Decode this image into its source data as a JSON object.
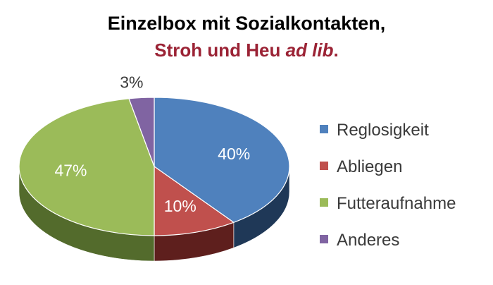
{
  "chart_data": {
    "type": "pie",
    "title_line1": "Einzelbox mit Sozialkontakten,",
    "title_line2_plain": "Stroh und Heu ",
    "title_line2_italic": "ad lib",
    "title_line2_end": ".",
    "categories": [
      "Reglosigkeit",
      "Abliegen",
      "Futteraufnahme",
      "Anderes"
    ],
    "values": [
      40,
      10,
      47,
      3
    ],
    "data_labels": [
      "40%",
      "10%",
      "47%",
      "3%"
    ],
    "unit": "%",
    "colors": [
      "#4f81bd",
      "#c0504d",
      "#9bbb59",
      "#8064a2"
    ],
    "side_colors": [
      "#1f3857",
      "#5e1f1d",
      "#536b2c",
      "#47366a"
    ],
    "style": "3d-pie",
    "legend_position": "right"
  }
}
